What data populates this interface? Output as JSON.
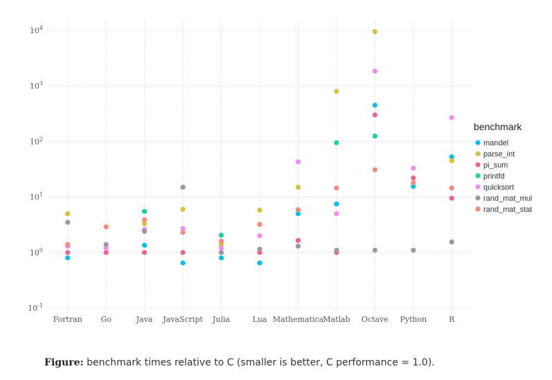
{
  "chart_data": {
    "type": "scatter",
    "categories": [
      "Fortran",
      "Go",
      "Java",
      "JavaScript",
      "Julia",
      "Lua",
      "Mathematica",
      "Matlab",
      "Octave",
      "Python",
      "R"
    ],
    "y_scale": "log10",
    "ylim": [
      0.1,
      10000
    ],
    "y_ticks": [
      {
        "base": "10",
        "exp": "-1"
      },
      {
        "base": "10",
        "exp": "0"
      },
      {
        "base": "10",
        "exp": "1"
      },
      {
        "base": "10",
        "exp": "2"
      },
      {
        "base": "10",
        "exp": "3"
      },
      {
        "base": "10",
        "exp": "4"
      }
    ],
    "grid": true,
    "legend_title": "benchmark",
    "legend_position": "right",
    "series": [
      {
        "name": "mandel",
        "color": "#00bfe8",
        "values": [
          0.8,
          null,
          1.35,
          0.65,
          0.8,
          0.65,
          5.0,
          7.5,
          450,
          15.5,
          53
        ]
      },
      {
        "name": "parse_int",
        "color": "#d4c23a",
        "values": [
          5.0,
          null,
          3.3,
          6.0,
          1.4,
          5.8,
          15.0,
          800,
          9500,
          null,
          45
        ]
      },
      {
        "name": "pi_sum",
        "color": "#f06292",
        "values": [
          1.0,
          1.0,
          1.0,
          1.0,
          null,
          1.0,
          1.65,
          1.0,
          300,
          22,
          9.5
        ]
      },
      {
        "name": "printfd",
        "color": "#17d4a3",
        "values": [
          null,
          null,
          5.5,
          null,
          2.05,
          null,
          null,
          95,
          125,
          null,
          null
        ]
      },
      {
        "name": "quicksort",
        "color": "#f28cf0",
        "values": [
          1.3,
          1.2,
          2.6,
          2.7,
          1.2,
          2.0,
          43,
          5.0,
          1850,
          33,
          270
        ]
      },
      {
        "name": "rand_mat_mul",
        "color": "#9a9a9a",
        "values": [
          3.5,
          1.4,
          2.4,
          15.0,
          1.0,
          1.15,
          1.3,
          1.1,
          1.1,
          1.1,
          1.55
        ]
      },
      {
        "name": "rand_mat_stat",
        "color": "#f48a7c",
        "values": [
          1.4,
          2.9,
          3.9,
          2.3,
          1.6,
          3.2,
          5.9,
          14.5,
          31,
          18,
          14.5
        ]
      }
    ]
  },
  "caption": {
    "label": "Figure:",
    "text": " benchmark times relative to C (smaller is better, C performance = 1.0)."
  }
}
